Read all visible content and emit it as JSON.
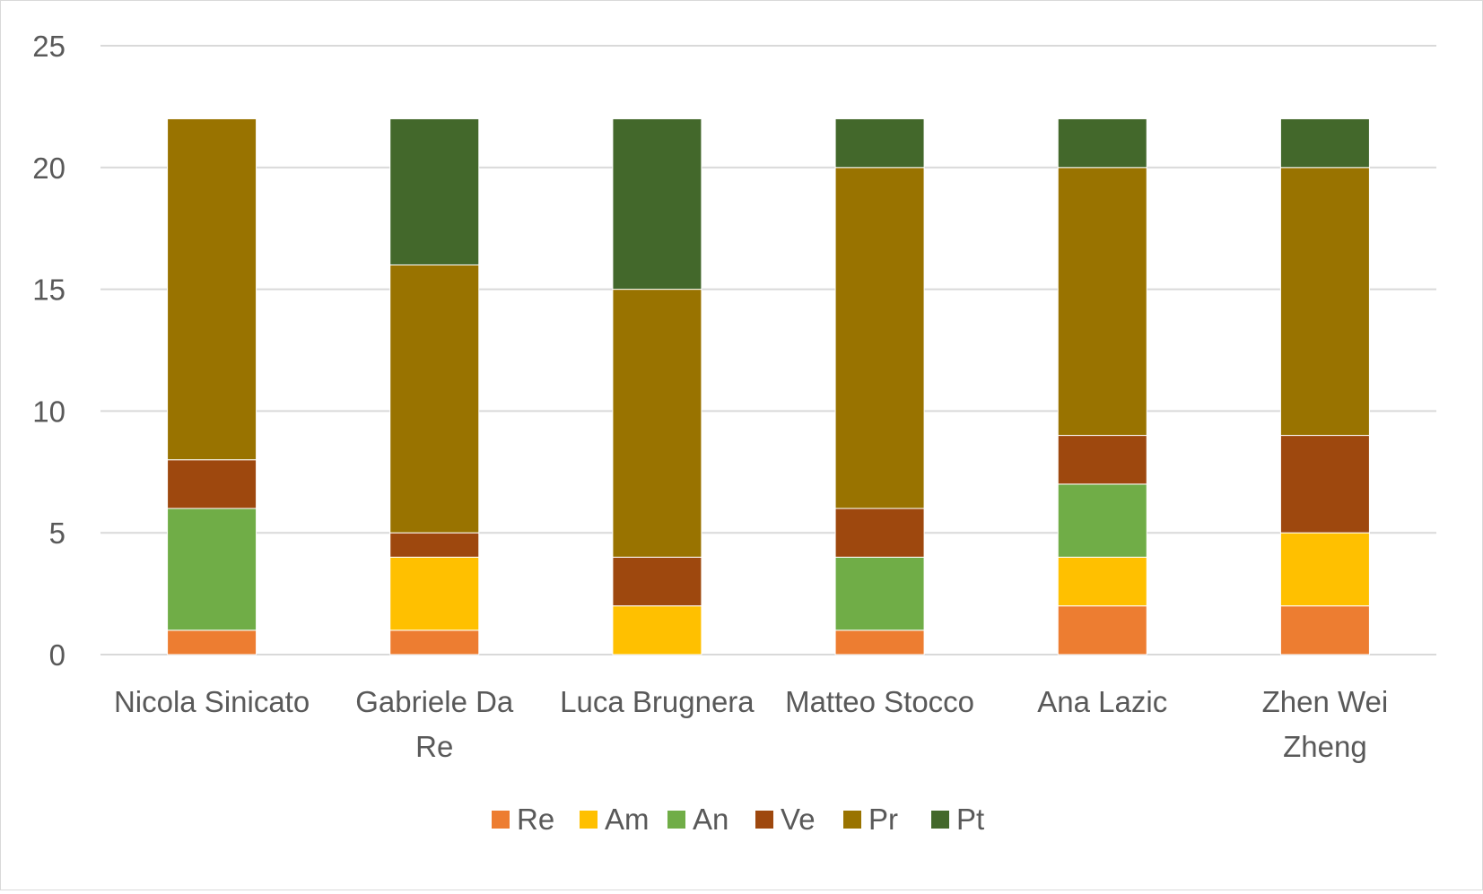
{
  "chart_data": {
    "type": "bar",
    "stacked": true,
    "title": "",
    "xlabel": "",
    "ylabel": "",
    "ylim": [
      0,
      25
    ],
    "yticks": [
      0,
      5,
      10,
      15,
      20,
      25
    ],
    "grid": true,
    "legend_position": "bottom",
    "categories": [
      [
        "Nicola Sinicato"
      ],
      [
        "Gabriele Da",
        "Re"
      ],
      [
        "Luca Brugnera"
      ],
      [
        "Matteo Stocco"
      ],
      [
        "Ana Lazic"
      ],
      [
        "Zhen Wei",
        "Zheng"
      ]
    ],
    "series": [
      {
        "name": "Re",
        "color": "#ED7D31",
        "values": [
          1,
          1,
          0,
          1,
          2,
          2
        ]
      },
      {
        "name": "Am",
        "color": "#FFC000",
        "values": [
          0,
          3,
          2,
          0,
          2,
          3
        ]
      },
      {
        "name": "An",
        "color": "#70AD47",
        "values": [
          5,
          0,
          0,
          3,
          3,
          0
        ]
      },
      {
        "name": "Ve",
        "color": "#9E480E",
        "values": [
          2,
          1,
          2,
          2,
          2,
          4
        ]
      },
      {
        "name": "Pr",
        "color": "#997300",
        "values": [
          14,
          11,
          11,
          14,
          11,
          11
        ]
      },
      {
        "name": "Pt",
        "color": "#43682B",
        "values": [
          0,
          6,
          7,
          2,
          2,
          2
        ]
      }
    ]
  }
}
